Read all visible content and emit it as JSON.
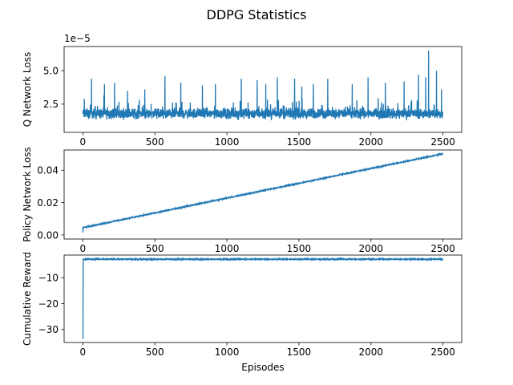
{
  "figure": {
    "title": "DDPG Statistics"
  },
  "style": {
    "line_color": "#1f77b4",
    "axis_color": "#000000",
    "background": "#ffffff"
  },
  "chart_data": [
    {
      "type": "line",
      "title": "",
      "xlabel": "",
      "ylabel": "Q Network Loss",
      "offset_text": "1e−5",
      "xlim": [
        -130,
        2630
      ],
      "ylim": [
        0.4,
        6.8
      ],
      "xticks": [
        0,
        500,
        1000,
        1500,
        2000,
        2500
      ],
      "xtick_labels": [
        "0",
        "500",
        "1000",
        "1500",
        "2000",
        "2500"
      ],
      "yticks": [
        2.5,
        5.0
      ],
      "ytick_labels": [
        "2.5",
        "5.0"
      ],
      "grid": false,
      "series": [
        {
          "name": "",
          "pattern": "noisy",
          "n": 2500,
          "base": 1.8,
          "noise": 0.55,
          "floor": 0.7,
          "spikes": [
            [
              10,
              2.9
            ],
            [
              60,
              4.4
            ],
            [
              150,
              4.0
            ],
            [
              220,
              4.1
            ],
            [
              310,
              3.5
            ],
            [
              430,
              3.6
            ],
            [
              570,
              4.6
            ],
            [
              680,
              4.1
            ],
            [
              830,
              3.9
            ],
            [
              920,
              4.0
            ],
            [
              1100,
              4.4
            ],
            [
              1210,
              4.3
            ],
            [
              1270,
              4.0
            ],
            [
              1350,
              4.5
            ],
            [
              1470,
              4.4
            ],
            [
              1520,
              3.8
            ],
            [
              1600,
              4.0
            ],
            [
              1700,
              4.4
            ],
            [
              1870,
              4.0
            ],
            [
              1980,
              4.5
            ],
            [
              2100,
              4.1
            ],
            [
              2230,
              4.2
            ],
            [
              2330,
              4.7
            ],
            [
              2380,
              4.5
            ],
            [
              2400,
              6.5
            ],
            [
              2455,
              5.0
            ],
            [
              2490,
              3.6
            ]
          ]
        }
      ]
    },
    {
      "type": "line",
      "title": "",
      "xlabel": "",
      "ylabel": "Policy Network Loss",
      "xlim": [
        -130,
        2630
      ],
      "ylim": [
        -0.0025,
        0.0525
      ],
      "xticks": [
        0,
        500,
        1000,
        1500,
        2000,
        2500
      ],
      "xtick_labels": [
        "0",
        "500",
        "1000",
        "1500",
        "2000",
        "2500"
      ],
      "yticks": [
        0.0,
        0.02,
        0.04
      ],
      "ytick_labels": [
        "0.00",
        "0.02",
        "0.04"
      ],
      "grid": false,
      "series": [
        {
          "name": "",
          "pattern": "trend",
          "n": 2500,
          "start": 0.0015,
          "jump_to": 0.0045,
          "end": 0.0502,
          "noise": 0.0004
        }
      ]
    },
    {
      "type": "line",
      "title": "",
      "xlabel": "Episodes",
      "ylabel": "Cumulative Reward",
      "xlim": [
        -130,
        2630
      ],
      "ylim": [
        -35,
        -1.3
      ],
      "xticks": [
        0,
        500,
        1000,
        1500,
        2000,
        2500
      ],
      "xtick_labels": [
        "0",
        "500",
        "1000",
        "1500",
        "2000",
        "2500"
      ],
      "yticks": [
        -10,
        -20,
        -30
      ],
      "ytick_labels": [
        "−10",
        "−20",
        "−30"
      ],
      "grid": false,
      "series": [
        {
          "name": "",
          "pattern": "plateau",
          "n": 2500,
          "start": -33.5,
          "level": -2.9,
          "noise": 0.25
        }
      ]
    }
  ]
}
